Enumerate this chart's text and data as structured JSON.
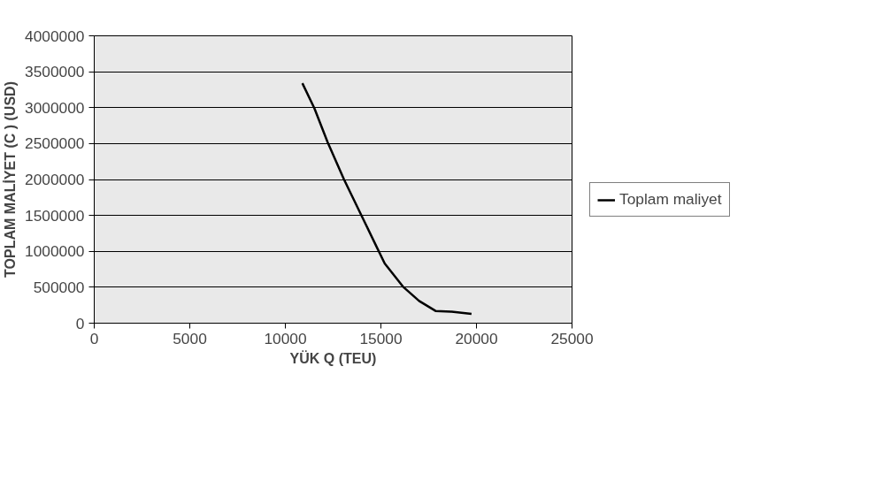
{
  "chart_data": {
    "type": "line",
    "xlabel": "YÜK Q (TEU)",
    "ylabel": "TOPLAM MALİYET (C ) (USD)",
    "x": [
      10890,
      11520,
      12210,
      13070,
      14000,
      14780,
      15200,
      16150,
      17000,
      17860,
      18700,
      19740
    ],
    "series": [
      {
        "name": "Toplam maliyet",
        "color": "#000000",
        "values": [
          3340000,
          2990000,
          2520000,
          2000000,
          1490000,
          1060000,
          830000,
          510000,
          310000,
          170000,
          160000,
          130000
        ]
      }
    ],
    "xlim": [
      0,
      25000
    ],
    "xticks": [
      0,
      5000,
      10000,
      15000,
      20000,
      25000
    ],
    "ylim": [
      0,
      4000000
    ],
    "yticks": [
      0,
      500000,
      1000000,
      1500000,
      2000000,
      2500000,
      3000000,
      3500000,
      4000000
    ],
    "grid": "y",
    "legend": "right",
    "marker": "none",
    "line_style": "solid"
  }
}
